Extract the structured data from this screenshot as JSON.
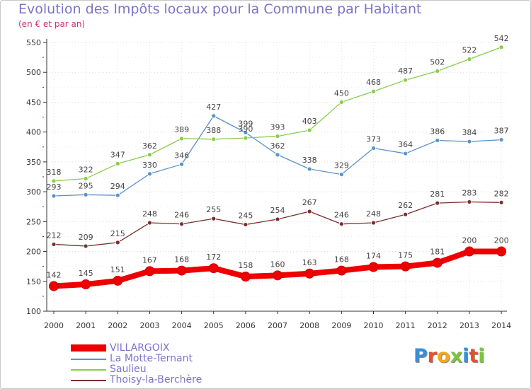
{
  "title": "Evolution des Impôts locaux pour la Commune par Habitant",
  "subtitle": "(en € et par an)",
  "logo": {
    "text": "Proxiti",
    "letters": [
      "P",
      "r",
      "o",
      "x",
      "i",
      "t",
      "i"
    ],
    "colors": [
      "#3a8fd6",
      "#e8502a",
      "#f2a81d",
      "#7fc241",
      "#3a8fd6",
      "#e8502a",
      "#7fc241"
    ]
  },
  "chart_data": {
    "type": "line",
    "title": "Evolution des Impôts locaux pour la Commune par Habitant",
    "subtitle": "(en € et par an)",
    "x": [
      "2000",
      "2001",
      "2002",
      "2003",
      "2004",
      "2005",
      "2006",
      "2007",
      "2008",
      "2009",
      "2010",
      "2011",
      "2012",
      "2013",
      "2014"
    ],
    "ylim": [
      100,
      550
    ],
    "yticks": [
      100,
      150,
      200,
      250,
      300,
      350,
      400,
      450,
      500,
      550
    ],
    "grid": true,
    "legend_position": "bottom-left",
    "series": [
      {
        "name": "VILLARGOIX",
        "color": "#ee0000",
        "thick": true,
        "values": [
          142,
          145,
          151,
          167,
          168,
          172,
          158,
          160,
          163,
          168,
          174,
          175,
          181,
          200,
          200
        ]
      },
      {
        "name": "La Motte-Ternant",
        "color": "#5b92c9",
        "thick": false,
        "values": [
          293,
          295,
          294,
          330,
          346,
          427,
          399,
          362,
          338,
          329,
          373,
          364,
          386,
          384,
          387
        ]
      },
      {
        "name": "Saulieu",
        "color": "#88cc4a",
        "thick": false,
        "values": [
          318,
          322,
          347,
          362,
          389,
          388,
          390,
          393,
          403,
          450,
          468,
          487,
          502,
          522,
          542
        ]
      },
      {
        "name": "Thoisy-la-Berchère",
        "color": "#7a2e2e",
        "thick": false,
        "values": [
          212,
          209,
          215,
          248,
          246,
          255,
          245,
          254,
          267,
          246,
          248,
          262,
          281,
          283,
          282
        ]
      }
    ]
  }
}
